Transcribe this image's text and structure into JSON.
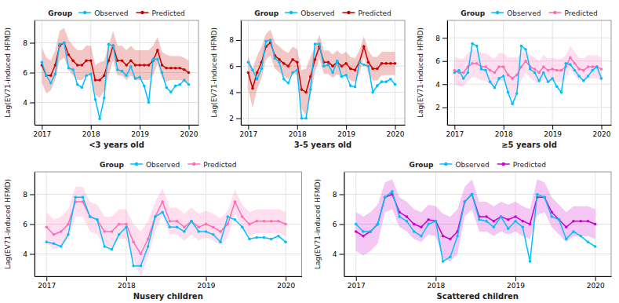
{
  "chart_data": [
    {
      "type": "line",
      "xlabel": "<3 years old",
      "ylabel": "Lag(EV71-induced HFMD)",
      "x": [
        2017,
        2017.0909090909,
        2017.1818181818,
        2017.2727272727,
        2017.3636363636,
        2017.4545454545,
        2017.5454545455,
        2017.6363636364,
        2017.7272727273,
        2017.8181818182,
        2017.9090909091,
        2018,
        2018.0909090909,
        2018.1818181818,
        2018.2727272727,
        2018.3636363636,
        2018.4545454545,
        2018.5454545455,
        2018.6363636364,
        2018.7272727273,
        2018.8181818182,
        2018.9090909091,
        2019,
        2019.0909090909,
        2019.1818181818,
        2019.2727272727,
        2019.3636363636,
        2019.4545454545,
        2019.5454545455,
        2019.6363636364,
        2019.7272727273,
        2019.8181818182,
        2019.9090909091,
        2020
      ],
      "xlim": [
        2016.85,
        2020.2
      ],
      "xticks": [
        2017,
        2018,
        2019,
        2020
      ],
      "ylim": [
        2.5,
        9.5
      ],
      "yticks": [
        4,
        6,
        8
      ],
      "grid": true,
      "legend": "top",
      "legend_title": "Group",
      "series": [
        {
          "name": "Observed",
          "color": "#00bfff",
          "marker": "circle",
          "values": [
            6.7,
            5.8,
            5.3,
            5.9,
            7.9,
            8.0,
            6.3,
            6.2,
            5.2,
            5.0,
            5.8,
            5.9,
            4.2,
            2.9,
            4.3,
            7.9,
            7.8,
            6.2,
            6.1,
            5.8,
            6.4,
            5.6,
            5.7,
            5.1,
            4.0,
            6.9,
            6.9,
            6.0,
            5.0,
            4.7,
            5.1,
            5.2,
            5.5,
            5.2
          ]
        },
        {
          "name": "Predicted",
          "color": "#cc0000",
          "marker": "circle",
          "values": [
            6.5,
            5.8,
            5.8,
            6.5,
            7.8,
            8.0,
            7.2,
            6.8,
            6.5,
            6.5,
            6.8,
            6.8,
            5.5,
            5.5,
            5.8,
            6.8,
            7.8,
            6.8,
            6.8,
            6.5,
            6.8,
            6.5,
            6.5,
            6.5,
            6.5,
            6.8,
            7.5,
            6.5,
            6.3,
            6.3,
            6.3,
            6.3,
            6.2,
            6.0
          ],
          "ci_upper_offset": [
            1.2,
            1.2,
            1.0,
            1.0,
            1.0,
            1.0,
            1.0,
            1.0,
            1.0,
            1.0,
            1.0,
            1.0,
            1.0,
            1.2,
            1.0,
            1.0,
            1.0,
            1.0,
            1.0,
            1.0,
            1.0,
            1.0,
            1.0,
            1.0,
            1.0,
            1.0,
            0.9,
            0.9,
            0.9,
            0.8,
            0.8,
            0.8,
            0.8,
            0.8
          ],
          "ci_lower_offset": [
            1.2,
            1.2,
            1.0,
            1.0,
            1.0,
            1.0,
            1.0,
            1.0,
            1.0,
            1.0,
            1.0,
            1.0,
            1.0,
            1.2,
            1.0,
            1.0,
            1.0,
            1.0,
            1.0,
            1.0,
            1.0,
            1.0,
            1.0,
            1.0,
            1.0,
            1.0,
            0.9,
            0.9,
            0.9,
            0.8,
            0.8,
            0.8,
            0.8,
            0.8
          ]
        }
      ]
    },
    {
      "type": "line",
      "xlabel": "3-5 years old",
      "ylabel": "Lag(EV71-induced HFMD)",
      "x": [
        2017,
        2017.0909090909,
        2017.1818181818,
        2017.2727272727,
        2017.3636363636,
        2017.4545454545,
        2017.5454545455,
        2017.6363636364,
        2017.7272727273,
        2017.8181818182,
        2017.9090909091,
        2018,
        2018.0909090909,
        2018.1818181818,
        2018.2727272727,
        2018.3636363636,
        2018.4545454545,
        2018.5454545455,
        2018.6363636364,
        2018.7272727273,
        2018.8181818182,
        2018.9090909091,
        2019,
        2019.0909090909,
        2019.1818181818,
        2019.2727272727,
        2019.3636363636,
        2019.4545454545,
        2019.5454545455,
        2019.6363636364,
        2019.7272727273,
        2019.8181818182,
        2019.9090909091,
        2020
      ],
      "xlim": [
        2016.85,
        2020.2
      ],
      "xticks": [
        2017,
        2018,
        2019,
        2020
      ],
      "ylim": [
        1.5,
        9.5
      ],
      "yticks": [
        2,
        4,
        6,
        8
      ],
      "grid": true,
      "legend": "top",
      "legend_title": "Group",
      "series": [
        {
          "name": "Observed",
          "color": "#00bfff",
          "marker": "circle",
          "values": [
            6.3,
            5.7,
            5.0,
            5.8,
            7.9,
            8.0,
            6.6,
            6.3,
            5.0,
            4.7,
            5.5,
            5.7,
            2.0,
            2.0,
            4.2,
            7.7,
            7.7,
            6.0,
            6.1,
            5.5,
            6.4,
            5.2,
            5.3,
            4.5,
            4.4,
            6.3,
            6.1,
            6.0,
            4.0,
            4.5,
            4.8,
            4.8,
            5.0,
            4.6
          ]
        },
        {
          "name": "Predicted",
          "color": "#cc0000",
          "marker": "circle",
          "values": [
            5.5,
            4.3,
            5.5,
            6.3,
            7.5,
            7.8,
            6.8,
            6.5,
            6.2,
            6.0,
            6.5,
            6.3,
            4.2,
            4.0,
            5.2,
            6.5,
            7.5,
            6.3,
            6.3,
            6.0,
            6.3,
            6.0,
            6.2,
            5.8,
            5.7,
            6.3,
            7.5,
            6.3,
            5.8,
            5.8,
            6.2,
            6.2,
            6.2,
            6.2
          ],
          "ci_upper_offset": [
            1.3,
            1.5,
            1.3,
            1.2,
            1.0,
            1.0,
            1.0,
            1.0,
            1.0,
            1.0,
            1.0,
            1.0,
            1.5,
            1.8,
            1.5,
            1.0,
            0.9,
            0.9,
            0.9,
            0.9,
            0.9,
            0.9,
            0.9,
            0.9,
            0.9,
            0.9,
            0.8,
            0.9,
            0.9,
            0.9,
            0.9,
            0.9,
            0.9,
            0.9
          ],
          "ci_lower_offset": [
            1.3,
            1.5,
            1.3,
            1.2,
            1.0,
            1.0,
            1.0,
            1.0,
            1.0,
            1.0,
            1.0,
            1.0,
            1.5,
            1.8,
            1.5,
            1.0,
            0.9,
            0.9,
            0.9,
            0.9,
            0.9,
            0.9,
            0.9,
            0.9,
            0.9,
            0.9,
            0.8,
            0.9,
            0.9,
            0.9,
            0.9,
            0.9,
            0.9,
            0.9
          ]
        }
      ]
    },
    {
      "type": "line",
      "xlabel": "≥5 years old",
      "ylabel": "Lag(EV71-induced HFMD)",
      "x": [
        2017,
        2017.0909090909,
        2017.1818181818,
        2017.2727272727,
        2017.3636363636,
        2017.4545454545,
        2017.5454545455,
        2017.6363636364,
        2017.7272727273,
        2017.8181818182,
        2017.9090909091,
        2018,
        2018.0909090909,
        2018.1818181818,
        2018.2727272727,
        2018.3636363636,
        2018.4545454545,
        2018.5454545455,
        2018.6363636364,
        2018.7272727273,
        2018.8181818182,
        2018.9090909091,
        2019,
        2019.0909090909,
        2019.1818181818,
        2019.2727272727,
        2019.3636363636,
        2019.4545454545,
        2019.5454545455,
        2019.6363636364,
        2019.7272727273,
        2019.8181818182,
        2019.9090909091,
        2020
      ],
      "xlim": [
        2016.85,
        2020.2
      ],
      "xticks": [
        2017,
        2018,
        2019,
        2020
      ],
      "ylim": [
        0.5,
        9.5
      ],
      "yticks": [
        2,
        4,
        6,
        8
      ],
      "grid": true,
      "legend": "top",
      "legend_title": "Group",
      "series": [
        {
          "name": "Observed",
          "color": "#00bfff",
          "marker": "circle",
          "values": [
            5.0,
            5.2,
            4.5,
            5.0,
            7.5,
            7.3,
            5.3,
            5.2,
            4.2,
            3.7,
            4.5,
            4.7,
            3.3,
            2.3,
            3.2,
            7.3,
            7.0,
            5.3,
            5.0,
            4.3,
            5.0,
            4.2,
            4.5,
            3.8,
            3.3,
            5.8,
            5.7,
            5.2,
            4.7,
            4.3,
            4.7,
            5.2,
            5.5,
            4.5
          ]
        },
        {
          "name": "Predicted",
          "color": "#ff6eb4",
          "marker": "circle",
          "values": [
            5.2,
            5.0,
            5.0,
            5.5,
            5.8,
            5.8,
            5.5,
            5.5,
            5.2,
            5.0,
            5.5,
            5.5,
            4.8,
            4.5,
            4.8,
            5.5,
            6.0,
            5.5,
            5.3,
            5.0,
            5.5,
            5.2,
            5.3,
            5.2,
            5.2,
            5.5,
            6.3,
            5.8,
            5.3,
            5.2,
            5.5,
            5.5,
            5.5,
            5.3
          ],
          "ci_upper_offset": [
            1.2,
            1.2,
            1.2,
            1.2,
            1.2,
            1.2,
            1.2,
            1.2,
            1.2,
            1.2,
            1.2,
            1.2,
            1.5,
            1.8,
            1.5,
            1.2,
            1.0,
            1.0,
            1.0,
            1.0,
            1.0,
            1.0,
            1.0,
            1.0,
            1.0,
            1.0,
            1.0,
            1.0,
            1.0,
            1.0,
            1.0,
            1.0,
            1.0,
            1.0
          ],
          "ci_lower_offset": [
            1.2,
            1.2,
            1.2,
            1.2,
            1.2,
            1.2,
            1.2,
            1.2,
            1.2,
            1.2,
            1.2,
            1.2,
            1.5,
            1.8,
            1.5,
            1.2,
            1.0,
            1.0,
            1.0,
            1.0,
            1.0,
            1.0,
            1.0,
            1.0,
            1.0,
            1.0,
            1.0,
            1.0,
            1.0,
            1.0,
            1.0,
            1.0,
            1.0,
            1.0
          ]
        }
      ]
    },
    {
      "type": "line",
      "xlabel": "Nusery children",
      "ylabel": "Lag(EV71-induced HFMD)",
      "x": [
        2017,
        2017.0909090909,
        2017.1818181818,
        2017.2727272727,
        2017.3636363636,
        2017.4545454545,
        2017.5454545455,
        2017.6363636364,
        2017.7272727273,
        2017.8181818182,
        2017.9090909091,
        2018,
        2018.0909090909,
        2018.1818181818,
        2018.2727272727,
        2018.3636363636,
        2018.4545454545,
        2018.5454545455,
        2018.6363636364,
        2018.7272727273,
        2018.8181818182,
        2018.9090909091,
        2019,
        2019.0909090909,
        2019.1818181818,
        2019.2727272727,
        2019.3636363636,
        2019.4545454545,
        2019.5454545455,
        2019.6363636364,
        2019.7272727273,
        2019.8181818182,
        2019.9090909091,
        2020
      ],
      "xlim": [
        2016.85,
        2020.2
      ],
      "xticks": [
        2017,
        2018,
        2019,
        2020
      ],
      "ylim": [
        2.5,
        9.5
      ],
      "yticks": [
        4,
        6,
        8
      ],
      "grid": true,
      "legend": "top",
      "legend_title": "Group",
      "series": [
        {
          "name": "Observed",
          "color": "#00bfff",
          "marker": "circle",
          "values": [
            4.8,
            4.7,
            4.5,
            5.3,
            7.8,
            7.8,
            6.5,
            6.3,
            4.5,
            4.3,
            5.3,
            5.8,
            3.2,
            3.2,
            4.5,
            6.5,
            6.8,
            5.8,
            5.8,
            5.5,
            6.2,
            5.5,
            5.5,
            5.3,
            4.8,
            6.5,
            6.3,
            5.8,
            5.0,
            5.1,
            5.1,
            5.0,
            5.2,
            4.8
          ]
        },
        {
          "name": "Predicted",
          "color": "#ff6eb4",
          "marker": "circle",
          "values": [
            5.8,
            5.3,
            5.5,
            6.0,
            7.5,
            7.5,
            6.5,
            6.3,
            5.5,
            5.5,
            6.0,
            6.0,
            4.8,
            4.0,
            5.0,
            6.5,
            7.5,
            6.2,
            6.2,
            5.8,
            6.2,
            5.8,
            6.0,
            5.8,
            5.5,
            6.0,
            7.5,
            6.5,
            6.0,
            6.2,
            6.2,
            6.2,
            6.2,
            6.0
          ],
          "ci_upper_offset": [
            1.0,
            1.0,
            1.0,
            1.0,
            1.0,
            1.0,
            1.0,
            1.0,
            1.0,
            1.0,
            1.0,
            1.0,
            1.2,
            1.5,
            1.2,
            1.0,
            0.9,
            0.9,
            0.9,
            0.9,
            0.9,
            0.9,
            0.9,
            0.9,
            0.9,
            0.9,
            0.8,
            0.8,
            0.8,
            0.8,
            0.8,
            0.8,
            0.8,
            0.8
          ],
          "ci_lower_offset": [
            1.0,
            1.0,
            1.0,
            1.0,
            1.0,
            1.0,
            1.0,
            1.0,
            1.0,
            1.0,
            1.0,
            1.0,
            1.2,
            1.5,
            1.2,
            1.0,
            0.9,
            0.9,
            0.9,
            0.9,
            0.9,
            0.9,
            0.9,
            0.9,
            0.9,
            0.9,
            0.8,
            0.8,
            0.8,
            0.8,
            0.8,
            0.8,
            0.8,
            0.8
          ]
        }
      ]
    },
    {
      "type": "line",
      "xlabel": "Scattered children",
      "ylabel": "Lag(EV71-induced HFMD)",
      "x": [
        2017,
        2017.0909090909,
        2017.1818181818,
        2017.2727272727,
        2017.3636363636,
        2017.4545454545,
        2017.5454545455,
        2017.6363636364,
        2017.7272727273,
        2017.8181818182,
        2017.9090909091,
        2018,
        2018.0909090909,
        2018.1818181818,
        2018.2727272727,
        2018.3636363636,
        2018.4545454545,
        2018.5454545455,
        2018.6363636364,
        2018.7272727273,
        2018.8181818182,
        2018.9090909091,
        2019,
        2019.0909090909,
        2019.1818181818,
        2019.2727272727,
        2019.3636363636,
        2019.4545454545,
        2019.5454545455,
        2019.6363636364,
        2019.7272727273,
        2019.8181818182,
        2019.9090909091,
        2020
      ],
      "xlim": [
        2016.85,
        2020.2
      ],
      "xticks": [
        2017,
        2018,
        2019,
        2020
      ],
      "ylim": [
        2.5,
        9.5
      ],
      "yticks": [
        4,
        6,
        8
      ],
      "grid": true,
      "legend": "top",
      "legend_title": "Group",
      "series": [
        {
          "name": "Observed",
          "color": "#00bfff",
          "marker": "circle",
          "values": [
            6.0,
            5.5,
            5.5,
            6.0,
            7.8,
            8.2,
            6.5,
            6.2,
            5.5,
            5.2,
            6.0,
            6.2,
            3.5,
            3.8,
            5.2,
            7.5,
            8.0,
            6.3,
            6.2,
            5.8,
            6.5,
            5.7,
            6.2,
            5.8,
            3.5,
            8.0,
            7.8,
            6.5,
            6.3,
            5.0,
            5.5,
            5.2,
            4.8,
            4.5
          ]
        },
        {
          "name": "Predicted",
          "color": "#cc00cc",
          "marker": "circle",
          "values": [
            5.5,
            5.2,
            5.5,
            6.0,
            7.8,
            8.0,
            6.8,
            6.5,
            6.0,
            5.8,
            6.3,
            6.2,
            5.2,
            5.0,
            5.5,
            7.5,
            8.0,
            6.5,
            6.5,
            6.2,
            6.5,
            6.3,
            6.5,
            6.2,
            6.0,
            7.8,
            7.8,
            6.8,
            6.3,
            5.8,
            6.2,
            6.2,
            6.2,
            6.0
          ],
          "ci_upper_offset": [
            1.3,
            1.3,
            1.3,
            1.3,
            1.0,
            1.0,
            1.0,
            1.0,
            1.0,
            1.0,
            1.0,
            1.0,
            1.5,
            1.5,
            1.5,
            1.0,
            1.0,
            1.0,
            1.0,
            1.0,
            1.0,
            1.0,
            1.0,
            1.0,
            1.0,
            1.2,
            1.0,
            1.0,
            1.0,
            1.0,
            1.0,
            1.0,
            1.0,
            1.0
          ],
          "ci_lower_offset": [
            1.3,
            1.3,
            1.3,
            1.3,
            1.0,
            1.0,
            1.0,
            1.0,
            1.0,
            1.0,
            1.0,
            1.0,
            1.5,
            1.5,
            1.5,
            1.0,
            1.0,
            1.0,
            1.0,
            1.0,
            1.0,
            1.0,
            1.0,
            1.0,
            1.0,
            1.2,
            1.0,
            1.0,
            1.0,
            1.0,
            1.0,
            1.0,
            1.0,
            1.0
          ]
        }
      ]
    }
  ]
}
